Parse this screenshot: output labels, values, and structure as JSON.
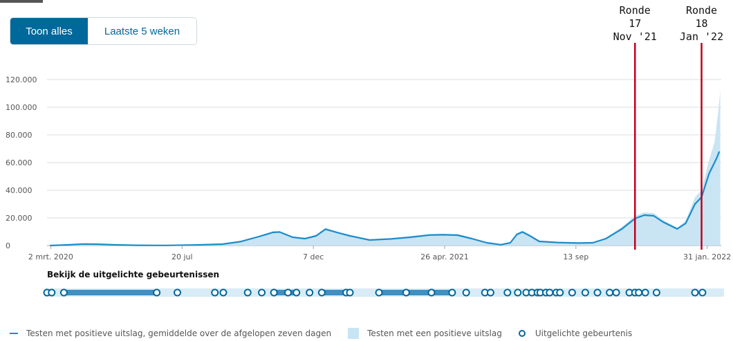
{
  "toggle": {
    "all_label": "Toon alles",
    "weeks_label": "Laatste 5 weken"
  },
  "annotations": [
    {
      "lines": [
        "Ronde",
        "17",
        "Nov '21"
      ],
      "date": "2021-11-15"
    },
    {
      "lines": [
        "Ronde",
        "18",
        "Jan '22"
      ],
      "date": "2022-01-25"
    }
  ],
  "events_title": "Bekijk de uitgelichte gebeurtenissen",
  "legend": {
    "line_label": "Testen met positieve uitslag, gemiddelde over de afgelopen zeven dagen",
    "area_label": "Testen met een positieve uitslag",
    "event_label": "Uitgelichte gebeurtenis"
  },
  "colors": {
    "line": "#1a8bc9",
    "area": "#c9e4f3",
    "accent": "#01689b",
    "annotation": "#c0001a"
  },
  "chart_data": {
    "type": "line",
    "x_type": "date",
    "xlim": [
      "2020-02-27",
      "2022-02-15"
    ],
    "ylim": [
      0,
      120000
    ],
    "yticks": [
      0,
      20000,
      40000,
      60000,
      80000,
      100000,
      120000
    ],
    "ytick_labels": [
      "0",
      "20.000",
      "40.000",
      "60.000",
      "80.000",
      "100.000",
      "120.000"
    ],
    "xticks": [
      {
        "date": "2020-03-02",
        "label": "2 mrt. 2020"
      },
      {
        "date": "2020-07-20",
        "label": "20 jul"
      },
      {
        "date": "2020-12-07",
        "label": "7 dec"
      },
      {
        "date": "2021-04-26",
        "label": "26 apr. 2021"
      },
      {
        "date": "2021-09-13",
        "label": "13 sep"
      },
      {
        "date": "2022-01-31",
        "label": "31 jan. 2022"
      }
    ],
    "grid": true,
    "series": [
      {
        "name": "Testen met positieve uitslag, gemiddelde over de afgelopen zeven dagen",
        "style": "line",
        "points": [
          [
            "2020-03-01",
            0
          ],
          [
            "2020-03-20",
            500
          ],
          [
            "2020-04-05",
            1100
          ],
          [
            "2020-04-20",
            1000
          ],
          [
            "2020-05-10",
            500
          ],
          [
            "2020-06-01",
            200
          ],
          [
            "2020-07-01",
            100
          ],
          [
            "2020-08-01",
            400
          ],
          [
            "2020-09-01",
            1000
          ],
          [
            "2020-09-20",
            2800
          ],
          [
            "2020-10-10",
            6500
          ],
          [
            "2020-10-25",
            9500
          ],
          [
            "2020-11-01",
            9800
          ],
          [
            "2020-11-15",
            6000
          ],
          [
            "2020-11-28",
            5000
          ],
          [
            "2020-12-10",
            7000
          ],
          [
            "2020-12-20",
            11800
          ],
          [
            "2021-01-01",
            9500
          ],
          [
            "2021-01-15",
            7000
          ],
          [
            "2021-02-05",
            4000
          ],
          [
            "2021-02-28",
            4800
          ],
          [
            "2021-03-20",
            6000
          ],
          [
            "2021-04-10",
            7600
          ],
          [
            "2021-04-25",
            7800
          ],
          [
            "2021-05-10",
            7500
          ],
          [
            "2021-05-25",
            5000
          ],
          [
            "2021-06-10",
            2000
          ],
          [
            "2021-06-25",
            600
          ],
          [
            "2021-07-05",
            2000
          ],
          [
            "2021-07-12",
            8000
          ],
          [
            "2021-07-18",
            9800
          ],
          [
            "2021-07-26",
            7000
          ],
          [
            "2021-08-05",
            3000
          ],
          [
            "2021-08-25",
            2200
          ],
          [
            "2021-09-15",
            1800
          ],
          [
            "2021-10-01",
            2000
          ],
          [
            "2021-10-15",
            5000
          ],
          [
            "2021-11-01",
            12000
          ],
          [
            "2021-11-15",
            19500
          ],
          [
            "2021-11-25",
            22000
          ],
          [
            "2021-12-05",
            21500
          ],
          [
            "2021-12-15",
            17000
          ],
          [
            "2021-12-30",
            12000
          ],
          [
            "2022-01-08",
            16000
          ],
          [
            "2022-01-18",
            30000
          ],
          [
            "2022-01-25",
            35000
          ],
          [
            "2022-02-02",
            52000
          ],
          [
            "2022-02-10",
            63000
          ],
          [
            "2022-02-13",
            68000
          ]
        ]
      },
      {
        "name": "Testen met een positieve uitslag",
        "style": "area",
        "points": [
          [
            "2020-03-01",
            0
          ],
          [
            "2020-03-20",
            700
          ],
          [
            "2020-04-05",
            1300
          ],
          [
            "2020-04-20",
            1200
          ],
          [
            "2020-05-10",
            600
          ],
          [
            "2020-06-01",
            250
          ],
          [
            "2020-07-01",
            150
          ],
          [
            "2020-08-01",
            500
          ],
          [
            "2020-09-01",
            1200
          ],
          [
            "2020-09-20",
            3200
          ],
          [
            "2020-10-10",
            7000
          ],
          [
            "2020-10-25",
            10500
          ],
          [
            "2020-11-01",
            10200
          ],
          [
            "2020-11-15",
            6600
          ],
          [
            "2020-11-28",
            5500
          ],
          [
            "2020-12-10",
            7800
          ],
          [
            "2020-12-20",
            13000
          ],
          [
            "2021-01-01",
            10200
          ],
          [
            "2021-01-15",
            7600
          ],
          [
            "2021-02-05",
            4400
          ],
          [
            "2021-02-28",
            5300
          ],
          [
            "2021-03-20",
            6700
          ],
          [
            "2021-04-10",
            8400
          ],
          [
            "2021-04-25",
            8500
          ],
          [
            "2021-05-10",
            8200
          ],
          [
            "2021-05-25",
            5600
          ],
          [
            "2021-06-10",
            2300
          ],
          [
            "2021-06-25",
            800
          ],
          [
            "2021-07-05",
            2400
          ],
          [
            "2021-07-12",
            9000
          ],
          [
            "2021-07-18",
            10800
          ],
          [
            "2021-07-26",
            7800
          ],
          [
            "2021-08-05",
            3400
          ],
          [
            "2021-08-25",
            2500
          ],
          [
            "2021-09-15",
            2100
          ],
          [
            "2021-10-01",
            2300
          ],
          [
            "2021-10-15",
            5600
          ],
          [
            "2021-11-01",
            13500
          ],
          [
            "2021-11-15",
            21500
          ],
          [
            "2021-11-25",
            24000
          ],
          [
            "2021-12-05",
            23500
          ],
          [
            "2021-12-15",
            18500
          ],
          [
            "2021-12-30",
            13000
          ],
          [
            "2022-01-08",
            18000
          ],
          [
            "2022-01-18",
            35000
          ],
          [
            "2022-01-25",
            40000
          ],
          [
            "2022-02-02",
            62000
          ],
          [
            "2022-02-08",
            75000
          ],
          [
            "2022-02-12",
            98000
          ],
          [
            "2022-02-14",
            112000
          ]
        ]
      }
    ]
  },
  "timeline": {
    "events": [
      "2020-02-27",
      "2020-03-03",
      "2020-03-16",
      "2020-06-23",
      "2020-07-15",
      "2020-08-24",
      "2020-09-02",
      "2020-09-28",
      "2020-10-13",
      "2020-10-26",
      "2020-11-10",
      "2020-11-19",
      "2020-12-03",
      "2020-12-16",
      "2021-01-11",
      "2021-01-15",
      "2021-02-15",
      "2021-03-16",
      "2021-04-12",
      "2021-05-04",
      "2021-05-19",
      "2021-06-08",
      "2021-06-14",
      "2021-07-02",
      "2021-07-13",
      "2021-07-22",
      "2021-07-28",
      "2021-08-03",
      "2021-08-06",
      "2021-08-12",
      "2021-08-16",
      "2021-08-23",
      "2021-08-27",
      "2021-09-09",
      "2021-09-23",
      "2021-10-06",
      "2021-10-19",
      "2021-10-26",
      "2021-11-09",
      "2021-11-15",
      "2021-11-19",
      "2021-11-26",
      "2021-12-08",
      "2022-01-18",
      "2022-01-26"
    ],
    "ranges": [
      [
        "2020-03-16",
        "2020-06-23"
      ],
      [
        "2020-10-26",
        "2020-11-19"
      ],
      [
        "2020-12-16",
        "2021-01-15"
      ],
      [
        "2021-02-15",
        "2021-05-04"
      ]
    ]
  }
}
